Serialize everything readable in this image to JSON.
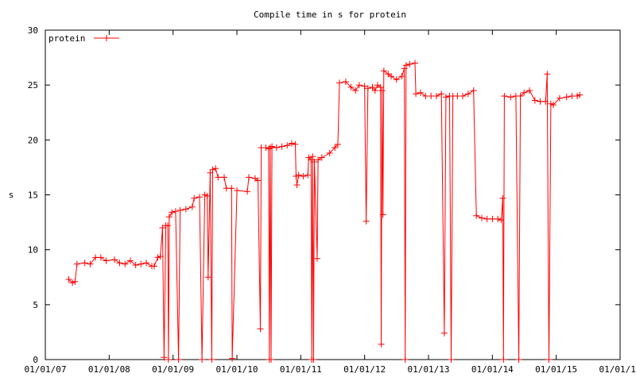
{
  "chart_data": {
    "type": "line",
    "title": "Compile time in s for protein",
    "xlabel": "",
    "ylabel": "s",
    "xlim": [
      "2007-01-01",
      "2016-01-01"
    ],
    "ylim": [
      0,
      30
    ],
    "x_ticks": [
      "01/01/07",
      "01/01/08",
      "01/01/09",
      "01/01/10",
      "01/01/11",
      "01/01/12",
      "01/01/13",
      "01/01/14",
      "01/01/15",
      "01/01/16"
    ],
    "y_ticks": [
      "0",
      "5",
      "10",
      "15",
      "20",
      "25",
      "30"
    ],
    "grid": false,
    "legend_position": "top-left",
    "color": "#ff0000",
    "series": [
      {
        "name": "protein",
        "points": [
          [
            "2007-05-15",
            7.3
          ],
          [
            "2007-06-05",
            7.0
          ],
          [
            "2007-06-20",
            7.1
          ],
          [
            "2007-07-01",
            8.7
          ],
          [
            "2007-08-15",
            8.8
          ],
          [
            "2007-09-15",
            8.7
          ],
          [
            "2007-10-15",
            9.3
          ],
          [
            "2007-11-15",
            9.3
          ],
          [
            "2007-12-15",
            9.0
          ],
          [
            "2008-02-01",
            9.1
          ],
          [
            "2008-03-01",
            8.8
          ],
          [
            "2008-04-01",
            8.7
          ],
          [
            "2008-05-01",
            9.0
          ],
          [
            "2008-06-01",
            8.6
          ],
          [
            "2008-07-01",
            8.7
          ],
          [
            "2008-08-01",
            8.8
          ],
          [
            "2008-09-01",
            8.5
          ],
          [
            "2008-09-15",
            8.5
          ],
          [
            "2008-10-05",
            9.3
          ],
          [
            "2008-10-20",
            9.4
          ],
          [
            "2008-11-01",
            12.0
          ],
          [
            "2008-11-10",
            0.2
          ],
          [
            "2008-11-20",
            12.2
          ],
          [
            "2008-12-01",
            12.2
          ],
          [
            "2008-12-05",
            0.0
          ],
          [
            "2008-12-10",
            13.0
          ],
          [
            "2008-12-25",
            13.4
          ],
          [
            "2009-01-15",
            13.5
          ],
          [
            "2009-02-01",
            0.0
          ],
          [
            "2009-02-10",
            13.6
          ],
          [
            "2009-03-15",
            13.7
          ],
          [
            "2009-04-20",
            13.9
          ],
          [
            "2009-05-01",
            14.7
          ],
          [
            "2009-06-01",
            14.8
          ],
          [
            "2009-06-15",
            0.0
          ],
          [
            "2009-07-01",
            15.0
          ],
          [
            "2009-07-15",
            14.9
          ],
          [
            "2009-07-20",
            7.5
          ],
          [
            "2009-08-01",
            17.0
          ],
          [
            "2009-08-10",
            0.0
          ],
          [
            "2009-08-15",
            17.3
          ],
          [
            "2009-09-01",
            17.4
          ],
          [
            "2009-09-15",
            16.6
          ],
          [
            "2009-10-20",
            16.6
          ],
          [
            "2009-11-01",
            15.6
          ],
          [
            "2009-12-01",
            15.6
          ],
          [
            "2009-12-05",
            0.1
          ],
          [
            "2010-01-01",
            15.4
          ],
          [
            "2010-03-01",
            15.3
          ],
          [
            "2010-03-10",
            16.6
          ],
          [
            "2010-04-15",
            16.5
          ],
          [
            "2010-05-01",
            16.3
          ],
          [
            "2010-05-15",
            2.8
          ],
          [
            "2010-05-20",
            19.3
          ],
          [
            "2010-06-15",
            19.3
          ],
          [
            "2010-07-01",
            19.2
          ],
          [
            "2010-07-05",
            0.0
          ],
          [
            "2010-07-10",
            19.3
          ],
          [
            "2010-07-15",
            0.0
          ],
          [
            "2010-07-20",
            19.4
          ],
          [
            "2010-08-15",
            19.3
          ],
          [
            "2010-09-15",
            19.4
          ],
          [
            "2010-10-15",
            19.5
          ],
          [
            "2010-11-10",
            19.7
          ],
          [
            "2010-12-01",
            19.6
          ],
          [
            "2010-12-05",
            16.7
          ],
          [
            "2010-12-10",
            15.9
          ],
          [
            "2010-12-20",
            16.8
          ],
          [
            "2011-01-15",
            16.7
          ],
          [
            "2011-02-10",
            16.8
          ],
          [
            "2011-02-15",
            18.4
          ],
          [
            "2011-03-01",
            18.2
          ],
          [
            "2011-03-05",
            0.0
          ],
          [
            "2011-03-10",
            18.5
          ],
          [
            "2011-03-15",
            0.0
          ],
          [
            "2011-03-20",
            18.0
          ],
          [
            "2011-04-05",
            9.2
          ],
          [
            "2011-04-10",
            18.2
          ],
          [
            "2011-05-01",
            18.4
          ],
          [
            "2011-06-15",
            18.8
          ],
          [
            "2011-07-15",
            19.3
          ],
          [
            "2011-08-01",
            19.6
          ],
          [
            "2011-08-10",
            25.2
          ],
          [
            "2011-09-15",
            25.3
          ],
          [
            "2011-10-15",
            24.8
          ],
          [
            "2011-11-10",
            24.5
          ],
          [
            "2011-12-01",
            25.0
          ],
          [
            "2012-01-01",
            24.9
          ],
          [
            "2012-01-10",
            12.6
          ],
          [
            "2012-01-20",
            24.7
          ],
          [
            "2012-02-15",
            24.8
          ],
          [
            "2012-03-01",
            24.5
          ],
          [
            "2012-03-15",
            25.0
          ],
          [
            "2012-04-01",
            24.8
          ],
          [
            "2012-04-05",
            1.4
          ],
          [
            "2012-04-10",
            24.5
          ],
          [
            "2012-04-15",
            13.2
          ],
          [
            "2012-04-20",
            26.3
          ],
          [
            "2012-05-15",
            26.0
          ],
          [
            "2012-06-01",
            25.8
          ],
          [
            "2012-07-01",
            25.5
          ],
          [
            "2012-08-01",
            25.8
          ],
          [
            "2012-08-15",
            26.5
          ],
          [
            "2012-08-20",
            0.0
          ],
          [
            "2012-08-25",
            26.8
          ],
          [
            "2012-09-15",
            26.9
          ],
          [
            "2012-10-15",
            27.0
          ],
          [
            "2012-10-20",
            24.2
          ],
          [
            "2012-11-15",
            24.3
          ],
          [
            "2012-12-15",
            24.0
          ],
          [
            "2013-01-15",
            24.0
          ],
          [
            "2013-02-15",
            24.0
          ],
          [
            "2013-03-15",
            24.2
          ],
          [
            "2013-04-01",
            2.4
          ],
          [
            "2013-04-10",
            23.9
          ],
          [
            "2013-05-01",
            24.0
          ],
          [
            "2013-05-10",
            0.0
          ],
          [
            "2013-05-20",
            24.0
          ],
          [
            "2013-06-15",
            24.0
          ],
          [
            "2013-07-15",
            24.0
          ],
          [
            "2013-08-15",
            24.2
          ],
          [
            "2013-09-15",
            24.5
          ],
          [
            "2013-10-01",
            13.1
          ],
          [
            "2013-11-01",
            12.9
          ],
          [
            "2013-12-01",
            12.8
          ],
          [
            "2014-01-01",
            12.8
          ],
          [
            "2014-02-01",
            12.8
          ],
          [
            "2014-02-20",
            12.7
          ],
          [
            "2014-03-01",
            14.7
          ],
          [
            "2014-03-05",
            0.0
          ],
          [
            "2014-03-10",
            24.0
          ],
          [
            "2014-04-15",
            23.9
          ],
          [
            "2014-05-15",
            24.0
          ],
          [
            "2014-06-01",
            0.0
          ],
          [
            "2014-06-10",
            24.0
          ],
          [
            "2014-07-01",
            24.3
          ],
          [
            "2014-08-01",
            24.5
          ],
          [
            "2014-09-01",
            23.6
          ],
          [
            "2014-10-01",
            23.5
          ],
          [
            "2014-11-01",
            23.5
          ],
          [
            "2014-11-10",
            26.0
          ],
          [
            "2014-11-20",
            0.0
          ],
          [
            "2014-12-01",
            23.3
          ],
          [
            "2014-12-15",
            23.2
          ],
          [
            "2015-01-20",
            23.8
          ],
          [
            "2015-03-01",
            23.9
          ],
          [
            "2015-04-01",
            24.0
          ],
          [
            "2015-05-01",
            24.0
          ],
          [
            "2015-05-15",
            24.1
          ]
        ]
      }
    ]
  }
}
